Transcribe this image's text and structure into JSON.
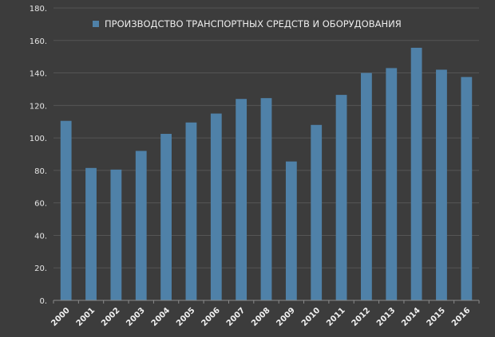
{
  "chart_data": {
    "type": "bar",
    "categories": [
      "2000",
      "2001",
      "2002",
      "2003",
      "2004",
      "2005",
      "2006",
      "2007",
      "2008",
      "2009",
      "2010",
      "2011",
      "2012",
      "2013",
      "2014",
      "2015",
      "2016"
    ],
    "series": [
      {
        "name": "ПРОИЗВОДСТВО ТРАНСПОРТНЫХ СРЕДСТВ И  ОБОРУДОВАНИЯ",
        "values": [
          110.5,
          81.5,
          80.5,
          92,
          102.5,
          109.5,
          115,
          124,
          124.5,
          85.5,
          108,
          126.5,
          140,
          143,
          155.5,
          142,
          137.5
        ],
        "color": "#4f81a8"
      }
    ],
    "ylim": [
      0,
      180
    ],
    "yticks": [
      0,
      20,
      40,
      60,
      80,
      100,
      120,
      140,
      160,
      180
    ],
    "ytick_labels": [
      "0.",
      "20.",
      "40.",
      "60.",
      "80.",
      "100.",
      "120.",
      "140.",
      "160.",
      "180."
    ],
    "grid": true,
    "legend_position": "top-center",
    "background": "#3c3c3c",
    "grid_color": "#555555",
    "text_color": "#e6e6e6"
  }
}
